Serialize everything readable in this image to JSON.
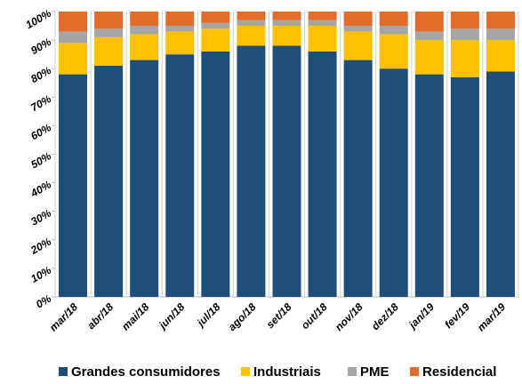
{
  "chart_data": {
    "type": "stacked_bar",
    "categories": [
      "mar/18",
      "abr/18",
      "mai/18",
      "jun/18",
      "jul/18",
      "ago/18",
      "set/18",
      "out/18",
      "nov/18",
      "dez/18",
      "jan/19",
      "fev/19",
      "mar/19"
    ],
    "series": [
      {
        "name": "Grandes consumidores",
        "color": "#1f4e79",
        "values": [
          78,
          81,
          83,
          85,
          86,
          88,
          88,
          86,
          83,
          80,
          78,
          77,
          79
        ]
      },
      {
        "name": "Industriais",
        "color": "#ffc000",
        "values": [
          11,
          10,
          9,
          8,
          8,
          7,
          7,
          9,
          10,
          12,
          12,
          13,
          11
        ]
      },
      {
        "name": "PME",
        "color": "#a5a5a5",
        "values": [
          4,
          3,
          3,
          2,
          2,
          2,
          2,
          2,
          2,
          3,
          3,
          4,
          4
        ]
      },
      {
        "name": "Residencial",
        "color": "#e46c2a",
        "values": [
          7,
          6,
          5,
          5,
          4,
          3,
          3,
          3,
          5,
          5,
          7,
          6,
          6
        ]
      }
    ],
    "ylim": [
      0,
      100
    ],
    "yticks": [
      {
        "value": 0,
        "label": "0%"
      },
      {
        "value": 10,
        "label": "10%"
      },
      {
        "value": 20,
        "label": "20%"
      },
      {
        "value": 30,
        "label": "30%"
      },
      {
        "value": 40,
        "label": "40%"
      },
      {
        "value": 50,
        "label": "50%"
      },
      {
        "value": 60,
        "label": "60%"
      },
      {
        "value": 70,
        "label": "70%"
      },
      {
        "value": 80,
        "label": "80%"
      },
      {
        "value": 90,
        "label": "90%"
      },
      {
        "value": 100,
        "label": "100%"
      }
    ],
    "legend": "bottom"
  }
}
